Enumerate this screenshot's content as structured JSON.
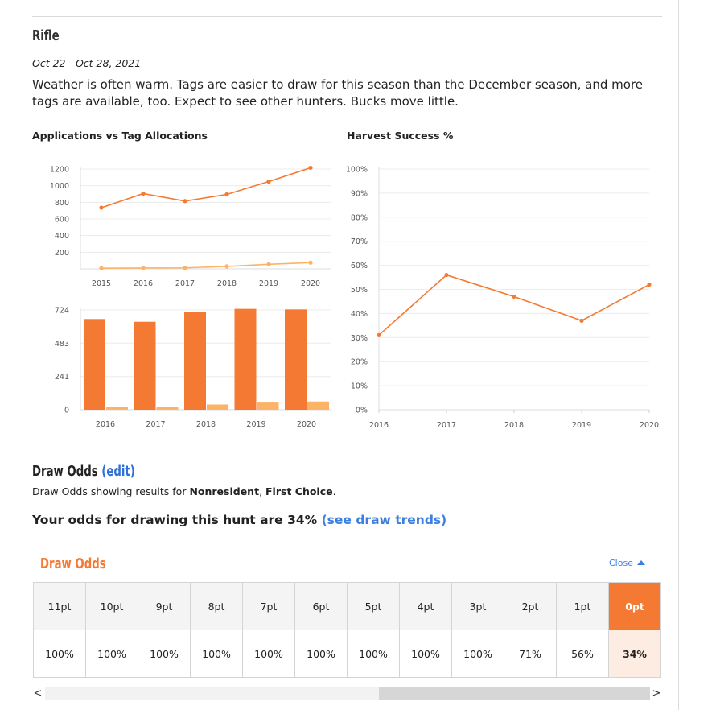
{
  "section": {
    "title": "Rifle",
    "dates": "Oct 22 - Oct 28, 2021",
    "description": "Weather is often warm. Tags are easier to draw for this season than the December season, and more tags are available, too. Expect to see other hunters. Bucks move little."
  },
  "charts": {
    "left_title": "Applications vs Tag Allocations",
    "right_title": "Harvest Success %"
  },
  "colors": {
    "accent": "#f47a33",
    "accent_light": "#fdb366",
    "link": "#3d7fe0"
  },
  "chart_data": [
    {
      "type": "line",
      "x": [
        "2015",
        "2016",
        "2017",
        "2018",
        "2019",
        "2020"
      ],
      "ylim": [
        0,
        1200
      ],
      "yticks": [
        200,
        400,
        600,
        800,
        1000,
        1200
      ],
      "series": [
        {
          "values": [
            735,
            905,
            815,
            895,
            1050,
            1215
          ],
          "color": "#f47a33"
        },
        {
          "values": [
            8,
            10,
            12,
            30,
            55,
            75
          ],
          "color": "#fdb366"
        }
      ]
    },
    {
      "type": "bar",
      "categories": [
        "2016",
        "2017",
        "2018",
        "2019",
        "2020"
      ],
      "ylim": [
        0,
        724
      ],
      "yticks": [
        0,
        241,
        483,
        724
      ],
      "series": [
        {
          "values": [
            658,
            638,
            710,
            732,
            728
          ],
          "color": "#f47a33"
        },
        {
          "values": [
            20,
            22,
            38,
            52,
            60
          ],
          "color": "#fdb366"
        }
      ]
    },
    {
      "type": "line",
      "title": "Harvest Success %",
      "x": [
        "2016",
        "2017",
        "2018",
        "2019",
        "2020"
      ],
      "ylim": [
        0,
        100
      ],
      "ytick_labels": [
        "0%",
        "10%",
        "20%",
        "30%",
        "40%",
        "50%",
        "60%",
        "70%",
        "80%",
        "90%",
        "100%"
      ],
      "series": [
        {
          "values": [
            31,
            56,
            47,
            37,
            52
          ],
          "color": "#f47a33"
        }
      ]
    }
  ],
  "draw": {
    "title": "Draw Odds",
    "edit_label": "(edit)",
    "sub_prefix": "Draw Odds showing results for ",
    "residency": "Nonresident",
    "sub_sep": ", ",
    "choice": "First Choice",
    "sub_end": ".",
    "odds_text": "Your odds for drawing this hunt are 34%",
    "trends_link": "(see draw trends)"
  },
  "panel": {
    "title": "Draw Odds",
    "close_label": "Close",
    "points": [
      "11pt",
      "10pt",
      "9pt",
      "8pt",
      "7pt",
      "6pt",
      "5pt",
      "4pt",
      "3pt",
      "2pt",
      "1pt",
      "0pt"
    ],
    "odds": [
      "100%",
      "100%",
      "100%",
      "100%",
      "100%",
      "100%",
      "100%",
      "100%",
      "100%",
      "71%",
      "56%",
      "34%"
    ],
    "selected_index": 11
  },
  "scrollbar": {
    "left_icon": "chevron-left-icon",
    "right_icon": "chevron-right-icon",
    "left_glyph": "<",
    "right_glyph": ">"
  }
}
